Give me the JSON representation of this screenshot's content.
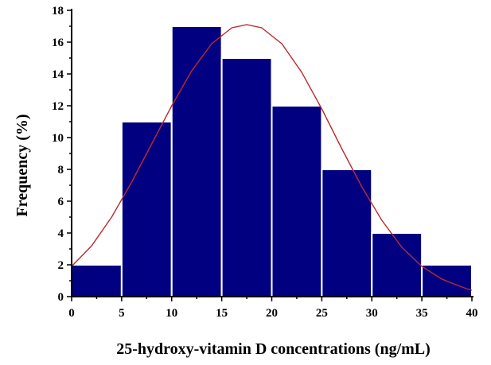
{
  "chart_data": {
    "type": "bar",
    "bins": [
      [
        0,
        5
      ],
      [
        5,
        10
      ],
      [
        10,
        15
      ],
      [
        15,
        20
      ],
      [
        20,
        25
      ],
      [
        25,
        30
      ],
      [
        30,
        35
      ],
      [
        35,
        40
      ]
    ],
    "values": [
      2,
      11,
      17,
      15,
      12,
      8,
      4,
      2
    ],
    "xlabel": "25-hydroxy-vitamin D concentrations (ng/mL)",
    "ylabel": "Frequency (%)",
    "xlim": [
      0,
      40
    ],
    "ylim": [
      0,
      18
    ],
    "x_ticks": [
      "0",
      "5",
      "10",
      "15",
      "20",
      "25",
      "30",
      "35",
      "40"
    ],
    "y_ticks": [
      "0",
      "2",
      "4",
      "6",
      "8",
      "10",
      "12",
      "14",
      "16",
      "18"
    ],
    "grid": false,
    "bar_color": "#000080",
    "bar_edge_color": "#ffffff",
    "fit_curve": {
      "type": "normal",
      "color": "#c0282d",
      "points": [
        [
          0,
          1.9
        ],
        [
          2,
          3.2
        ],
        [
          4,
          5.0
        ],
        [
          6,
          7.2
        ],
        [
          8,
          9.6
        ],
        [
          10,
          12.0
        ],
        [
          12,
          14.2
        ],
        [
          14,
          15.9
        ],
        [
          16,
          16.9
        ],
        [
          17.5,
          17.1
        ],
        [
          19,
          16.9
        ],
        [
          21,
          15.9
        ],
        [
          23,
          14.1
        ],
        [
          25,
          11.8
        ],
        [
          27,
          9.3
        ],
        [
          29,
          6.9
        ],
        [
          31,
          4.8
        ],
        [
          33,
          3.1
        ],
        [
          35,
          1.9
        ],
        [
          37,
          1.1
        ],
        [
          39,
          0.6
        ],
        [
          40,
          0.4
        ]
      ]
    }
  }
}
